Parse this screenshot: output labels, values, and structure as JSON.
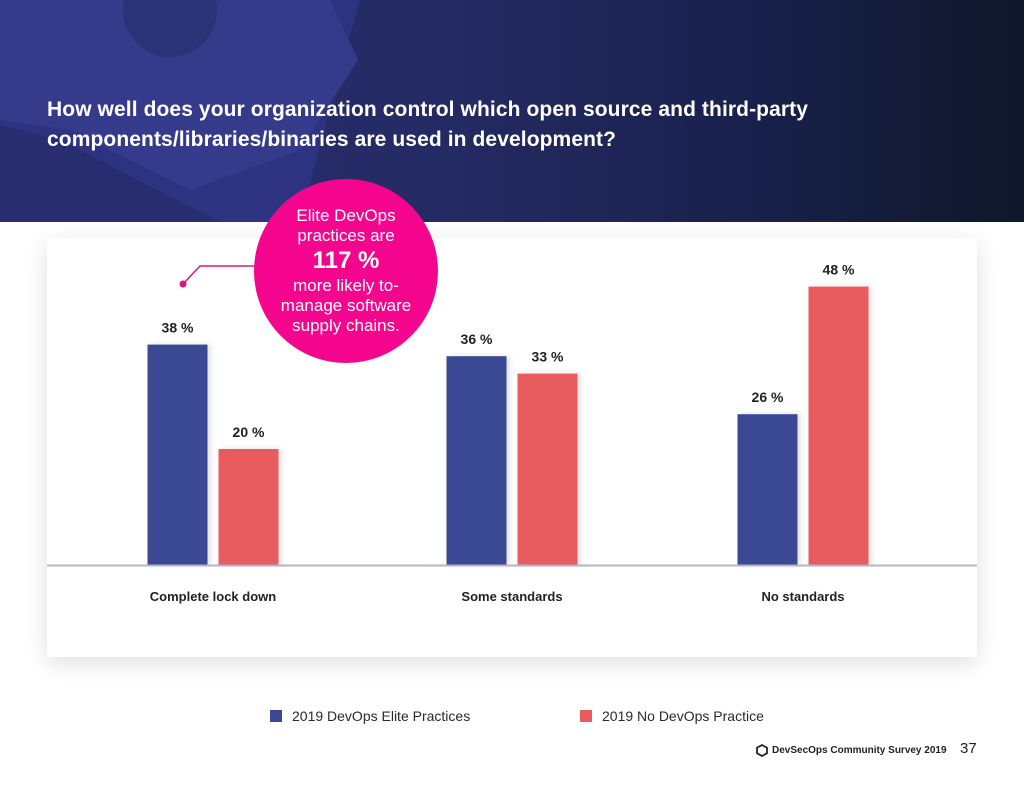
{
  "header": {
    "title_line1": "How well does your organization control which open source and third-party",
    "title_line2": "components/libraries/binaries are used in development?"
  },
  "callout": {
    "line1": "Elite DevOps",
    "line2": "practices are",
    "highlight": "117 %",
    "line3": "more likely to-",
    "line4": "manage software",
    "line5": "supply chains.",
    "color": "#f5058e"
  },
  "chart_data": {
    "type": "bar",
    "title": "How well does your organization control which open source and third-party components/libraries/binaries are used in development?",
    "xlabel": "",
    "ylabel": "",
    "ylim": [
      0,
      55
    ],
    "grid": false,
    "legend_position": "bottom",
    "categories": [
      "Complete lock down",
      "Some standards",
      "No standards"
    ],
    "series": [
      {
        "name": "2019 DevOps Elite Practices",
        "color": "#3a4a94",
        "values": [
          38,
          36,
          26
        ]
      },
      {
        "name": "2019 No DevOps Practice",
        "color": "#e85c5e",
        "values": [
          20,
          33,
          48
        ]
      }
    ],
    "value_suffix": " %"
  },
  "legend": {
    "items": [
      {
        "label": "2019 DevOps Elite Practices",
        "color": "#3a4a94"
      },
      {
        "label": "2019 No DevOps Practice",
        "color": "#e85c5e"
      }
    ]
  },
  "footer": {
    "brand": "DevSecOps Community Survey 2019",
    "brand_icon": "hexagon-icon",
    "page_number": "37"
  }
}
